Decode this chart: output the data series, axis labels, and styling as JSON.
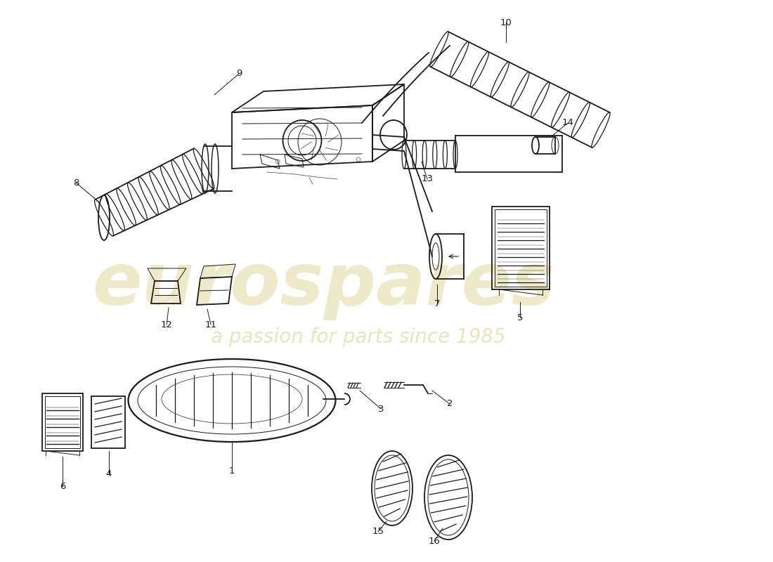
{
  "background_color": "#ffffff",
  "line_color": "#1a1a1a",
  "watermark_color1": "#c8b84a",
  "watermark_color2": "#c8b84a",
  "watermark_text1": "eurospares",
  "watermark_text2": "a passion for parts since 1985",
  "figsize": [
    11.0,
    8.0
  ],
  "dpi": 100,
  "lw_main": 1.3,
  "lw_thin": 0.7,
  "lw_thick": 2.0
}
